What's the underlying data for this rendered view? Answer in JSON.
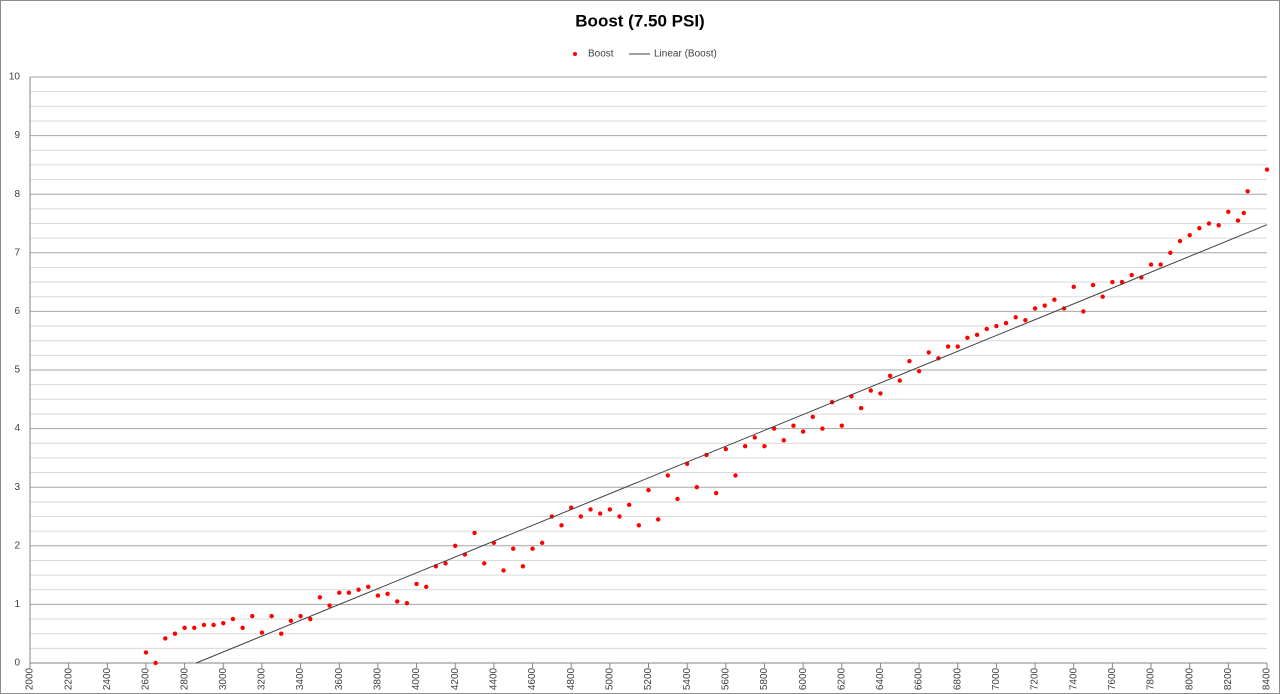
{
  "chart_data": {
    "type": "scatter",
    "title": "Boost (7.50 PSI)",
    "series": [
      {
        "name": "Boost",
        "color": "#ff0000",
        "x": [
          2600,
          2700,
          2800,
          2900,
          3000,
          3100,
          3200,
          3300,
          3400,
          3500,
          3600,
          3700,
          3800,
          3900,
          4000,
          4100,
          4200,
          4300,
          4400,
          4500,
          4600,
          4700,
          4800,
          4900,
          5000,
          5100,
          5200,
          5300,
          5400,
          5500,
          5600,
          5700,
          5800,
          5900,
          6000,
          6100,
          6200,
          6300,
          6400,
          6500,
          6600,
          6700,
          6800,
          6900,
          7000,
          7100,
          7200,
          7300,
          7400,
          7500,
          7600,
          7700,
          7800,
          7900,
          8000,
          8100,
          8200,
          8300,
          8400,
          2650,
          2750,
          2850,
          2950,
          3050,
          3150,
          3250,
          3350,
          3450,
          3550,
          3650,
          3750,
          3850,
          3950,
          4050,
          4150,
          4250,
          4350,
          4450,
          4550,
          4650,
          4750,
          4850,
          4950,
          5050,
          5150,
          5250,
          5350,
          5450,
          5550,
          5650,
          5750,
          5850,
          5950,
          6050,
          6150,
          6250,
          6350,
          6450,
          6550,
          6650,
          6750,
          6850,
          6950,
          7050,
          7150,
          7250,
          7350,
          7450,
          7550,
          7650,
          7750,
          7850,
          7950,
          8050,
          8150,
          8250,
          8280
        ],
        "values": [
          0.18,
          0.42,
          0.6,
          0.65,
          0.68,
          0.6,
          0.52,
          0.5,
          0.8,
          1.12,
          1.2,
          1.25,
          1.15,
          1.05,
          1.35,
          1.65,
          2.0,
          2.22,
          2.05,
          1.95,
          1.95,
          2.5,
          2.65,
          2.62,
          2.62,
          2.7,
          2.95,
          3.2,
          3.4,
          3.55,
          3.65,
          3.7,
          3.7,
          3.8,
          3.95,
          4.0,
          4.05,
          4.35,
          4.6,
          4.82,
          4.98,
          5.2,
          5.4,
          5.6,
          5.75,
          5.9,
          6.05,
          6.2,
          6.42,
          6.45,
          6.5,
          6.62,
          6.8,
          7.0,
          7.3,
          7.5,
          7.7,
          8.05,
          8.42,
          0,
          0.5,
          0.6,
          0.65,
          0.75,
          0.8,
          0.8,
          0.72,
          0.75,
          0.98,
          1.2,
          1.3,
          1.18,
          1.02,
          1.3,
          1.7,
          1.85,
          1.7,
          1.58,
          1.65,
          2.05,
          2.35,
          2.5,
          2.55,
          2.5,
          2.35,
          2.45,
          2.8,
          3.0,
          2.9,
          3.2,
          3.85,
          4.0,
          4.05,
          4.2,
          4.45,
          4.55,
          4.65,
          4.9,
          5.15,
          5.3,
          5.4,
          5.55,
          5.7,
          5.8,
          5.85,
          6.1,
          6.05,
          6.0,
          6.25,
          6.5,
          6.58,
          6.8,
          7.2,
          7.42,
          7.47,
          7.55,
          7.68
        ]
      }
    ],
    "trendline": {
      "name": "Linear (Boost)",
      "color": "#404040",
      "x": [
        2860,
        8400
      ],
      "values": [
        0,
        7.48
      ]
    },
    "xlim": [
      2000,
      8400
    ],
    "xticks": [
      2000,
      2200,
      2400,
      2600,
      2800,
      3000,
      3200,
      3400,
      3600,
      3800,
      4000,
      4200,
      4400,
      4600,
      4800,
      5000,
      5200,
      5400,
      5600,
      5800,
      6000,
      6200,
      6400,
      6600,
      6800,
      7000,
      7200,
      7400,
      7600,
      7800,
      8000,
      8200,
      8400
    ],
    "ylim": [
      0,
      10
    ],
    "yticks": [
      0,
      1,
      2,
      3,
      4,
      5,
      6,
      7,
      8,
      9,
      10
    ],
    "yminor": [
      0.25,
      0.5,
      0.75,
      1.25,
      1.5,
      1.75,
      2.25,
      2.5,
      2.75,
      3.25,
      3.5,
      3.75,
      4.25,
      4.5,
      4.75,
      5.25,
      5.5,
      5.75,
      6.25,
      6.5,
      6.75,
      7.25,
      7.5,
      7.75,
      8.25,
      8.5,
      8.75,
      9.25,
      9.5,
      9.75
    ],
    "grid": true,
    "legend": "top"
  }
}
